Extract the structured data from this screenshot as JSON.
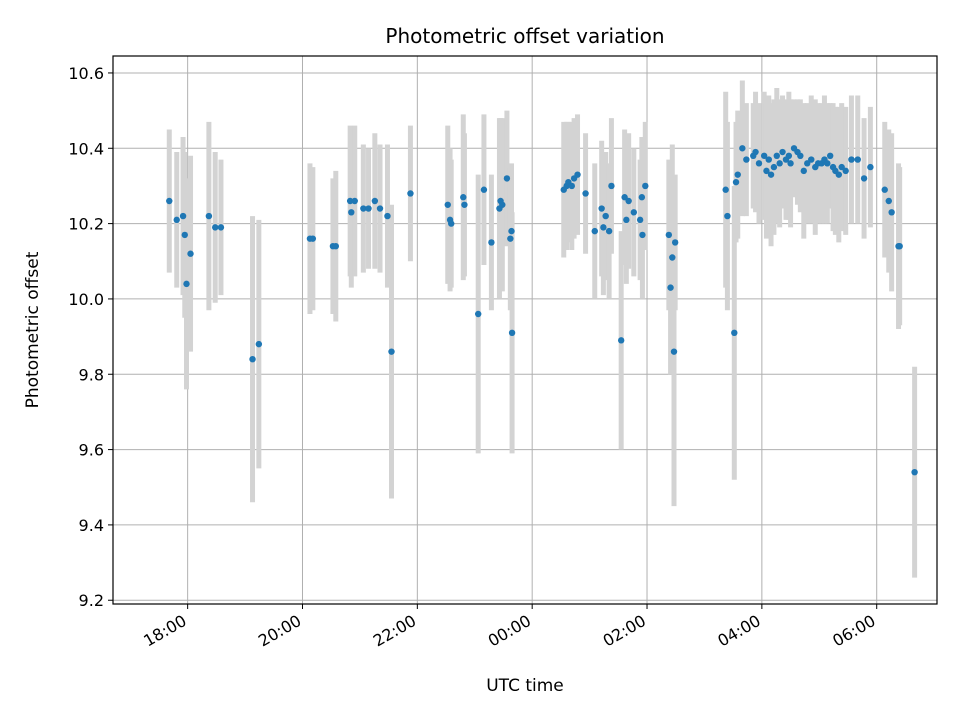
{
  "chart_data": {
    "type": "scatter",
    "title": "Photometric offset variation",
    "xlabel": "UTC time",
    "ylabel": "Photometric offset",
    "x_unit": "UTC hours (values beyond 24 continue past midnight)",
    "xlim": [
      16.7,
      31.05
    ],
    "ylim": [
      9.19,
      10.645
    ],
    "x_ticks": [
      {
        "value": 18,
        "label": "18:00"
      },
      {
        "value": 20,
        "label": "20:00"
      },
      {
        "value": 22,
        "label": "22:00"
      },
      {
        "value": 24,
        "label": "00:00"
      },
      {
        "value": 26,
        "label": "02:00"
      },
      {
        "value": 28,
        "label": "04:00"
      },
      {
        "value": 30,
        "label": "06:00"
      }
    ],
    "y_ticks": [
      {
        "value": 9.2,
        "label": "9.2"
      },
      {
        "value": 9.4,
        "label": "9.4"
      },
      {
        "value": 9.6,
        "label": "9.6"
      },
      {
        "value": 9.8,
        "label": "9.8"
      },
      {
        "value": 10.0,
        "label": "10.0"
      },
      {
        "value": 10.2,
        "label": "10.2"
      },
      {
        "value": 10.4,
        "label": "10.4"
      },
      {
        "value": 10.6,
        "label": "10.6"
      }
    ],
    "grid": true,
    "marker_color": "#1f77b4",
    "errorbar_color": "#d3d3d3",
    "series": [
      {
        "x": [
          17.68,
          17.81,
          17.92,
          17.95,
          17.98,
          18.05,
          18.37,
          18.48,
          18.58,
          19.13,
          19.24,
          20.13,
          20.18,
          20.53,
          20.58,
          20.83,
          20.85,
          20.91,
          21.06,
          21.15,
          21.26,
          21.35,
          21.48,
          21.55,
          21.88,
          22.53,
          22.57,
          22.59,
          22.8,
          22.82,
          23.06,
          23.16,
          23.29,
          23.43,
          23.45,
          23.48,
          23.56,
          23.62,
          23.64,
          23.65,
          24.55,
          24.6,
          24.63,
          24.69,
          24.73,
          24.79,
          24.93,
          25.09,
          25.21,
          25.24,
          25.28,
          25.34,
          25.38,
          25.55,
          25.61,
          25.64,
          25.68,
          25.77,
          25.88,
          25.91,
          25.92,
          25.97,
          26.38,
          26.41,
          26.44,
          26.47,
          26.49,
          27.37,
          27.4,
          27.52,
          27.55,
          27.58,
          27.66,
          27.73,
          27.85,
          27.89,
          27.95,
          28.04,
          28.08,
          28.12,
          28.16,
          28.21,
          28.26,
          28.31,
          28.36,
          28.42,
          28.47,
          28.5,
          28.56,
          28.62,
          28.67,
          28.73,
          28.79,
          28.86,
          28.93,
          28.98,
          29.04,
          29.09,
          29.14,
          29.19,
          29.24,
          29.28,
          29.34,
          29.39,
          29.46,
          29.56,
          29.67,
          29.78,
          29.89,
          30.14,
          30.21,
          30.26,
          30.38,
          30.4,
          30.66
        ],
        "y": [
          10.26,
          10.21,
          10.22,
          10.17,
          10.04,
          10.12,
          10.22,
          10.19,
          10.19,
          9.84,
          9.88,
          10.16,
          10.16,
          10.14,
          10.14,
          10.26,
          10.23,
          10.26,
          10.24,
          10.24,
          10.26,
          10.24,
          10.22,
          9.86,
          10.28,
          10.25,
          10.21,
          10.2,
          10.27,
          10.25,
          9.96,
          10.29,
          10.15,
          10.24,
          10.26,
          10.25,
          10.32,
          10.16,
          10.18,
          9.91,
          10.29,
          10.3,
          10.31,
          10.3,
          10.32,
          10.33,
          10.28,
          10.18,
          10.24,
          10.19,
          10.22,
          10.18,
          10.3,
          9.89,
          10.27,
          10.21,
          10.26,
          10.23,
          10.21,
          10.27,
          10.17,
          10.3,
          10.17,
          10.03,
          10.11,
          9.86,
          10.15,
          10.29,
          10.22,
          9.91,
          10.31,
          10.33,
          10.4,
          10.37,
          10.38,
          10.39,
          10.36,
          10.38,
          10.34,
          10.37,
          10.33,
          10.35,
          10.38,
          10.36,
          10.39,
          10.37,
          10.38,
          10.36,
          10.4,
          10.39,
          10.38,
          10.34,
          10.36,
          10.37,
          10.35,
          10.36,
          10.36,
          10.37,
          10.36,
          10.38,
          10.35,
          10.34,
          10.33,
          10.35,
          10.34,
          10.37,
          10.37,
          10.32,
          10.35,
          10.29,
          10.26,
          10.23,
          10.14,
          10.14,
          9.54
        ],
        "yerr": [
          0.19,
          0.18,
          0.21,
          0.22,
          0.28,
          0.26,
          0.25,
          0.2,
          0.18,
          0.38,
          0.33,
          0.2,
          0.19,
          0.18,
          0.2,
          0.2,
          0.2,
          0.2,
          0.17,
          0.16,
          0.18,
          0.17,
          0.19,
          0.39,
          0.18,
          0.21,
          0.19,
          0.17,
          0.22,
          0.19,
          0.37,
          0.2,
          0.18,
          0.24,
          0.22,
          0.23,
          0.18,
          0.19,
          0.18,
          0.32,
          0.18,
          0.17,
          0.16,
          0.17,
          0.16,
          0.16,
          0.16,
          0.18,
          0.18,
          0.18,
          0.17,
          0.18,
          0.18,
          0.29,
          0.18,
          0.17,
          0.18,
          0.17,
          0.16,
          0.16,
          0.17,
          0.17,
          0.2,
          0.23,
          0.3,
          0.41,
          0.18,
          0.26,
          0.25,
          0.39,
          0.16,
          0.17,
          0.18,
          0.15,
          0.14,
          0.16,
          0.16,
          0.17,
          0.18,
          0.17,
          0.19,
          0.18,
          0.18,
          0.17,
          0.15,
          0.16,
          0.17,
          0.17,
          0.13,
          0.14,
          0.15,
          0.18,
          0.16,
          0.17,
          0.18,
          0.16,
          0.16,
          0.17,
          0.16,
          0.14,
          0.17,
          0.17,
          0.18,
          0.17,
          0.17,
          0.17,
          0.17,
          0.16,
          0.16,
          0.18,
          0.19,
          0.21,
          0.22,
          0.21,
          0.28
        ]
      }
    ]
  }
}
